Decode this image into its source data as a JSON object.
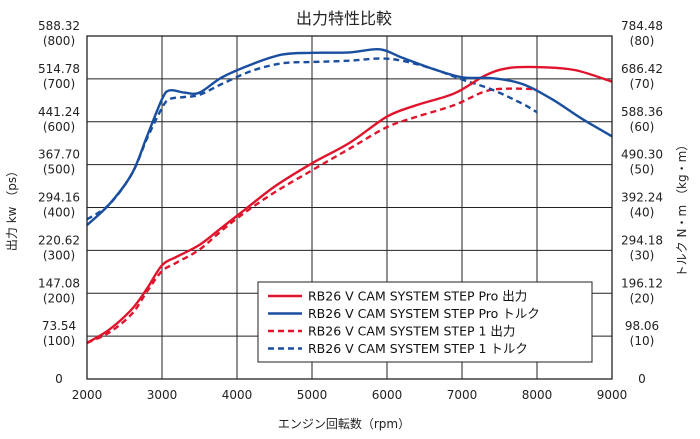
{
  "chart_data": {
    "type": "line",
    "title": "出力特性比較",
    "xlabel": "エンジン回転数（rpm）",
    "ylabel_left": "出力 kw （ps）",
    "ylabel_right": "トルク N・m （kg・m）",
    "xlim": [
      2000,
      9000
    ],
    "ylim_left": [
      0,
      588.32
    ],
    "ylim_right": [
      0,
      784.48
    ],
    "grid": true,
    "legend_position": "bottom-right",
    "x_ticks": [
      "2000",
      "3000",
      "4000",
      "5000",
      "6000",
      "7000",
      "8000",
      "9000"
    ],
    "left_ticks": [
      {
        "kw": "0",
        "ps": ""
      },
      {
        "kw": "73.54",
        "ps": "(100)"
      },
      {
        "kw": "147.08",
        "ps": "(200)"
      },
      {
        "kw": "220.62",
        "ps": "(300)"
      },
      {
        "kw": "294.16",
        "ps": "(400)"
      },
      {
        "kw": "367.70",
        "ps": "(500)"
      },
      {
        "kw": "441.24",
        "ps": "(600)"
      },
      {
        "kw": "514.78",
        "ps": "(700)"
      },
      {
        "kw": "588.32",
        "ps": "(800)"
      }
    ],
    "right_ticks": [
      {
        "nm": "0",
        "kgm": ""
      },
      {
        "nm": "98.06",
        "kgm": "(10)"
      },
      {
        "nm": "196.12",
        "kgm": "(20)"
      },
      {
        "nm": "294.18",
        "kgm": "(30)"
      },
      {
        "nm": "392.24",
        "kgm": "(40)"
      },
      {
        "nm": "490.30",
        "kgm": "(50)"
      },
      {
        "nm": "588.36",
        "kgm": "(60)"
      },
      {
        "nm": "686.42",
        "kgm": "(70)"
      },
      {
        "nm": "784.48",
        "kgm": "(80)"
      }
    ],
    "series": [
      {
        "name": "RB26 V CAM SYSTEM STEP Pro 出力",
        "axis": "left",
        "color": "#e0142d",
        "dash": false,
        "x": [
          2000,
          2300,
          2600,
          2800,
          3000,
          3200,
          3500,
          3800,
          4100,
          4500,
          5000,
          5500,
          6000,
          6400,
          6900,
          7300,
          7600,
          8000,
          8500,
          9000
        ],
        "y": [
          62,
          85,
          120,
          155,
          195,
          210,
          230,
          260,
          290,
          330,
          370,
          405,
          450,
          470,
          490,
          520,
          533,
          535,
          530,
          510
        ]
      },
      {
        "name": "RB26 V CAM SYSTEM STEP Pro トルク",
        "axis": "right",
        "color": "#1a4fa0",
        "dash": false,
        "x": [
          2000,
          2300,
          2600,
          2800,
          3000,
          3100,
          3300,
          3500,
          3800,
          4200,
          4600,
          5000,
          5500,
          5900,
          6200,
          6600,
          7000,
          7400,
          7800,
          8200,
          8600,
          9000
        ],
        "y": [
          352,
          400,
          470,
          555,
          640,
          660,
          655,
          655,
          690,
          720,
          742,
          746,
          747,
          754,
          735,
          710,
          690,
          688,
          675,
          640,
          595,
          555
        ]
      },
      {
        "name": "RB26 V CAM SYSTEM STEP 1 出力",
        "axis": "left",
        "color": "#e0142d",
        "dash": true,
        "x": [
          2000,
          2300,
          2600,
          2800,
          3000,
          3200,
          3500,
          3800,
          4100,
          4500,
          5000,
          5500,
          6000,
          6400,
          6900,
          7300,
          7600,
          8000
        ],
        "y": [
          62,
          80,
          112,
          150,
          185,
          200,
          222,
          255,
          285,
          320,
          358,
          395,
          432,
          450,
          470,
          493,
          498,
          497
        ]
      },
      {
        "name": "RB26 V CAM SYSTEM STEP 1 トルク",
        "axis": "right",
        "color": "#1a4fa0",
        "dash": true,
        "x": [
          2000,
          2300,
          2600,
          2800,
          3000,
          3100,
          3300,
          3500,
          3800,
          4200,
          4600,
          5000,
          5500,
          5900,
          6200,
          6600,
          7000,
          7400,
          7800,
          8000
        ],
        "y": [
          365,
          400,
          470,
          550,
          620,
          640,
          645,
          650,
          675,
          705,
          722,
          725,
          728,
          733,
          728,
          710,
          685,
          662,
          630,
          610
        ]
      }
    ]
  }
}
